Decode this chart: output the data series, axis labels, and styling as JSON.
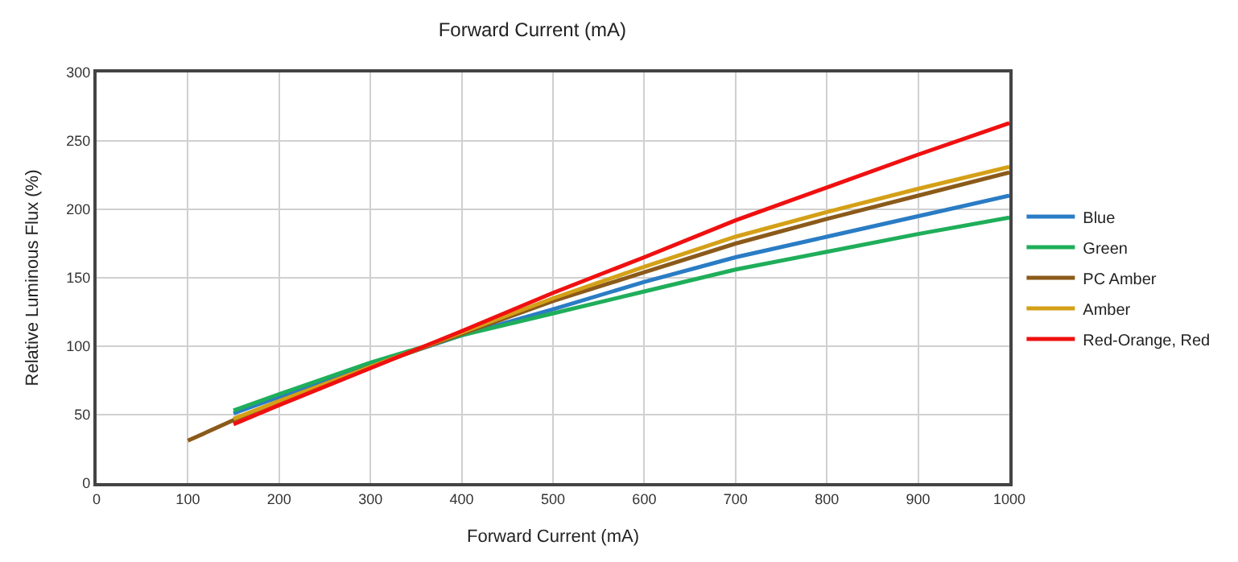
{
  "chart_data": {
    "type": "line",
    "title": "Forward Current (mA)",
    "xlabel": "Forward Current (mA)",
    "ylabel": "Relative Luminous Flux (%)",
    "xlim": [
      0,
      1000
    ],
    "xticks": [
      0,
      100,
      200,
      300,
      400,
      500,
      600,
      700,
      800,
      900,
      1000
    ],
    "ylim": [
      0,
      300
    ],
    "yticks": [
      0,
      50,
      100,
      150,
      200,
      250,
      300
    ],
    "grid": true,
    "legend": "right",
    "marker": "none",
    "line_style": "solid",
    "series": [
      {
        "name": "Blue",
        "color": "#2a7cc4",
        "x": [
          150,
          200,
          300,
          400,
          500,
          600,
          700,
          800,
          900,
          1000
        ],
        "values": [
          51,
          63,
          86,
          108,
          127,
          147,
          165,
          180,
          195,
          210
        ]
      },
      {
        "name": "Green",
        "color": "#1fae5a",
        "x": [
          150,
          200,
          300,
          400,
          500,
          600,
          700,
          800,
          900,
          1000
        ],
        "values": [
          53,
          65,
          88,
          108,
          124,
          140,
          156,
          169,
          182,
          194
        ]
      },
      {
        "name": "PC Amber",
        "color": "#8b5a1a",
        "x": [
          100,
          150,
          200,
          300,
          400,
          500,
          600,
          700,
          800,
          900,
          1000
        ],
        "values": [
          31,
          46,
          60,
          85,
          109,
          133,
          154,
          175,
          193,
          210,
          227
        ]
      },
      {
        "name": "Amber",
        "color": "#d4a017",
        "x": [
          150,
          200,
          300,
          400,
          500,
          600,
          700,
          800,
          900,
          1000
        ],
        "values": [
          47,
          60,
          85,
          110,
          135,
          158,
          180,
          198,
          215,
          231
        ]
      },
      {
        "name": "Red-Orange, Red",
        "color": "#f01010",
        "x": [
          150,
          200,
          300,
          400,
          500,
          600,
          700,
          800,
          900,
          1000
        ],
        "values": [
          43,
          57,
          84,
          111,
          139,
          165,
          192,
          216,
          240,
          263
        ]
      }
    ]
  }
}
